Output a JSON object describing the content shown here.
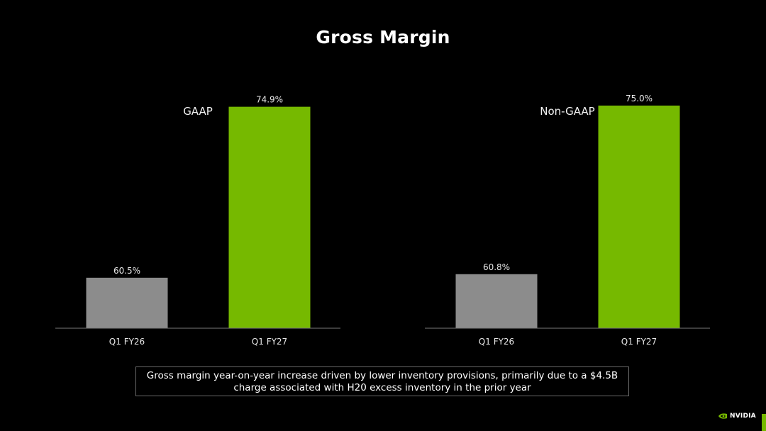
{
  "slide": {
    "title": "Gross Margin",
    "note_line1": "Gross margin year-on-year increase driven by lower inventory provisions, primarily due to a $4.5B",
    "note_line2": "charge associated with H20 excess inventory in the prior year",
    "logo_text": "NVIDIA"
  },
  "colors": {
    "background": "#000000",
    "prior_bar": "#8c8c8c",
    "current_bar": "#76b900",
    "baseline": "#777777"
  },
  "chart_data": [
    {
      "type": "bar",
      "title": "GAAP",
      "categories": [
        "Q1 FY26",
        "Q1 FY27"
      ],
      "values": [
        60.5,
        74.9
      ],
      "value_labels": [
        "60.5%",
        "74.9%"
      ],
      "unit": "%",
      "grid": false,
      "legend": "none"
    },
    {
      "type": "bar",
      "title": "Non-GAAP",
      "categories": [
        "Q1 FY26",
        "Q1 FY27"
      ],
      "values": [
        60.8,
        75.0
      ],
      "value_labels": [
        "60.8%",
        "75.0%"
      ],
      "unit": "%",
      "grid": false,
      "legend": "none"
    }
  ]
}
